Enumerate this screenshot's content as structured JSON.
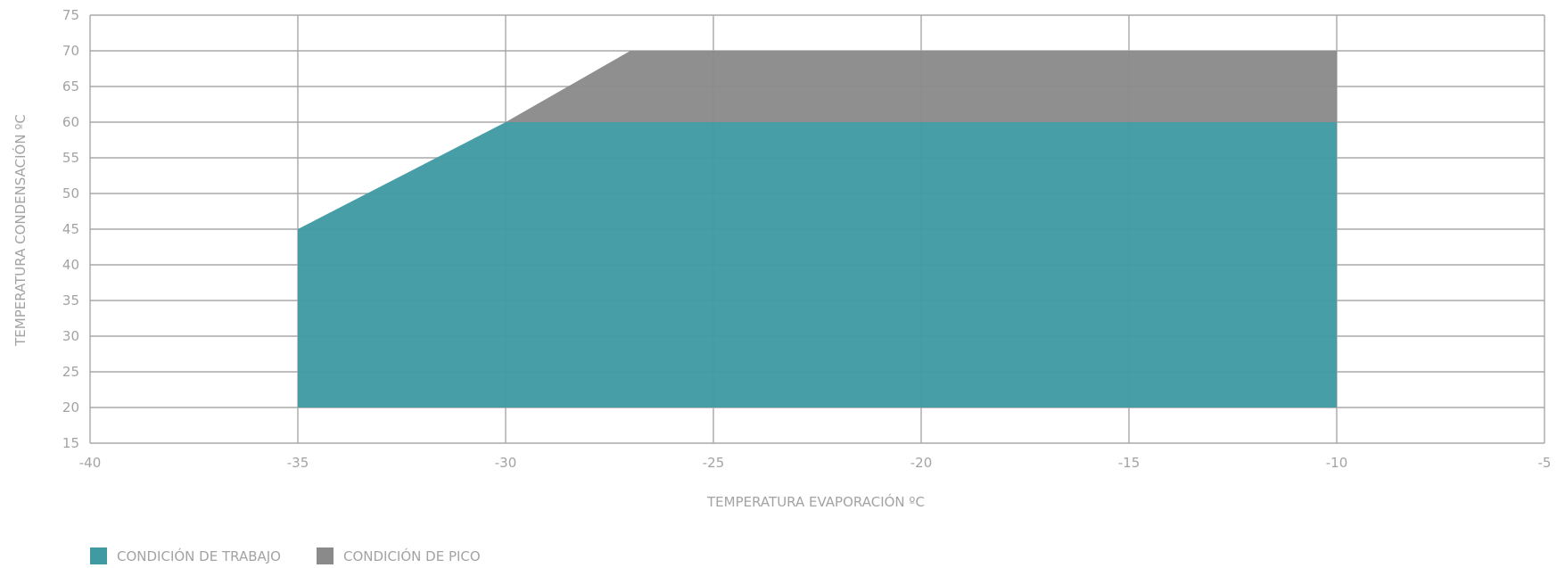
{
  "chart_data": {
    "type": "area",
    "title": "",
    "xlabel": "TEMPERATURA EVAPORACIÓN ºC",
    "ylabel": "TEMPERATURA CONDENSACIÓN ºC",
    "xlim": [
      -40,
      -5
    ],
    "ylim": [
      15,
      75
    ],
    "x_ticks": [
      -40,
      -35,
      -30,
      -25,
      -20,
      -15,
      -10,
      -5
    ],
    "y_ticks": [
      15,
      20,
      25,
      30,
      35,
      40,
      45,
      50,
      55,
      60,
      65,
      70,
      75
    ],
    "grid": true,
    "legend_position": "bottom-left",
    "series": [
      {
        "name": "CONDICIÓN DE TRABAJO",
        "color": "#3f9aa2",
        "polygon": [
          [
            -35,
            20
          ],
          [
            -35,
            45
          ],
          [
            -30,
            60
          ],
          [
            -10,
            60
          ],
          [
            -10,
            20
          ]
        ]
      },
      {
        "name": "CONDICIÓN DE PICO",
        "color": "#8a8a8a",
        "polygon": [
          [
            -30,
            60
          ],
          [
            -27,
            70
          ],
          [
            -10,
            70
          ],
          [
            -10,
            60
          ]
        ]
      }
    ]
  }
}
